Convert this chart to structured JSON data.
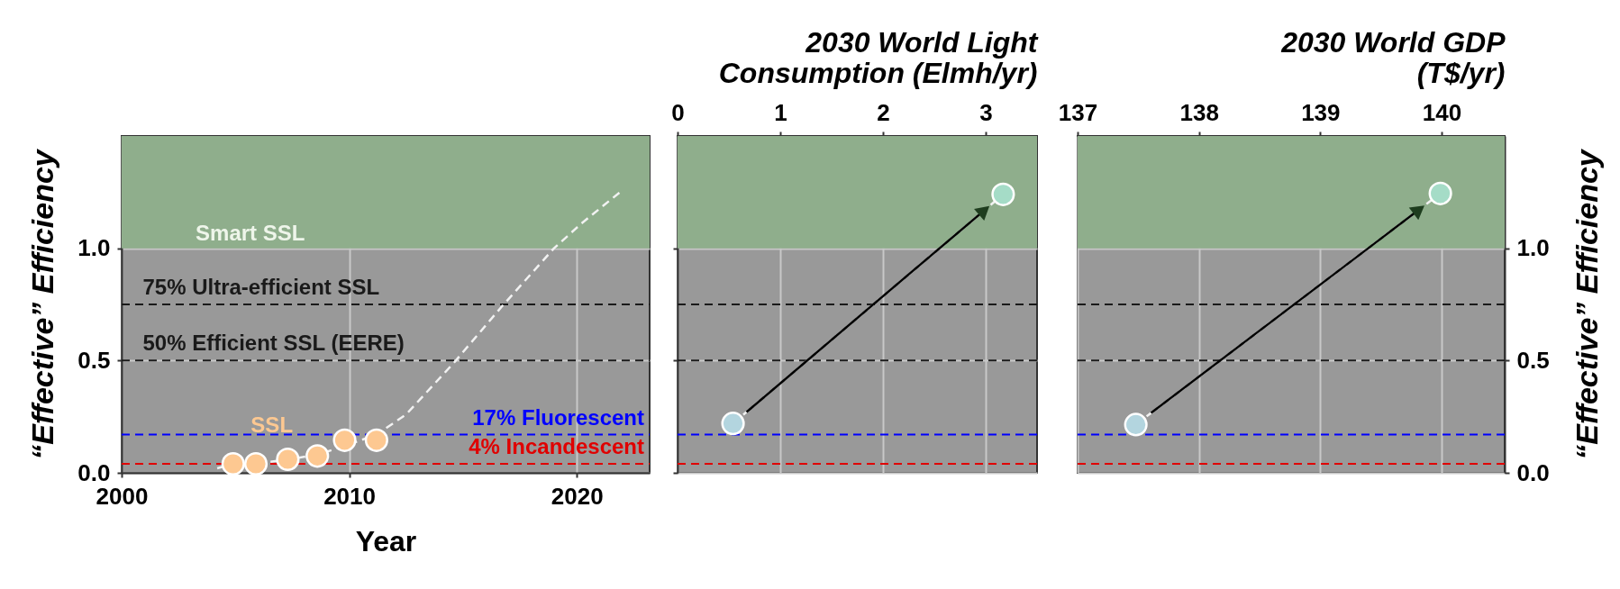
{
  "chart_data": [
    {
      "type": "scatter",
      "xlabel": "Year",
      "ylabel": "“Effective” Efficiency",
      "xlim": [
        2000,
        2023.2
      ],
      "xticks": [
        2000,
        2010,
        2020
      ],
      "ylim": [
        0,
        1.5
      ],
      "yticks": [
        {
          "value": 0,
          "label": "0.0"
        },
        {
          "value": 0.5,
          "label": "0.5"
        },
        {
          "value": 1.0,
          "label": "1.0"
        }
      ],
      "grid": true,
      "bands": [
        {
          "axis": "y",
          "from": 1.0,
          "to": 1.5,
          "label": "Smart SSL",
          "color": "#8fae8c"
        }
      ],
      "ref_lines": [
        {
          "axis": "y",
          "value": 0.75,
          "label": "75% Ultra-efficient SSL",
          "color": "#1a1a1a",
          "line_style": "dashed"
        },
        {
          "axis": "y",
          "value": 0.5,
          "label": "50% Efficient SSL (EERE)",
          "color": "#1a1a1a",
          "line_style": "dashed"
        },
        {
          "axis": "y",
          "value": 0.17,
          "label": "17% Fluorescent",
          "color": "#0000ff",
          "line_style": "dashed"
        },
        {
          "axis": "y",
          "value": 0.04,
          "label": "4% Incandescent",
          "color": "#e00000",
          "line_style": "dashed"
        }
      ],
      "series": [
        {
          "type": "line",
          "line_style": "dashed",
          "color": "#f2f2f2",
          "x": [
            2004.2,
            2004.9,
            2005.9,
            2007.3,
            2008.6,
            2009.8,
            2011.2,
            2012.5,
            2014.6,
            2016.7,
            2019.0,
            2020.2,
            2021.9
          ],
          "values": [
            0.02,
            0.04,
            0.04,
            0.06,
            0.08,
            0.12,
            0.17,
            0.26,
            0.49,
            0.74,
            1.0,
            1.11,
            1.25
          ]
        },
        {
          "name": "SSL",
          "color": "#fdc891",
          "marker": "circle",
          "x": [
            2004.9,
            2005.9,
            2007.3,
            2008.6,
            2009.8,
            2011.2
          ],
          "values": [
            0.04,
            0.04,
            0.06,
            0.075,
            0.145,
            0.145
          ]
        }
      ]
    },
    {
      "type": "scatter",
      "xlabel": "2030 World Light Consumption (Elmh/yr)",
      "xlim": [
        0,
        3.5
      ],
      "xticks": [
        0,
        1,
        2,
        3
      ],
      "ylim": [
        0,
        1.5
      ],
      "yticks": [
        {
          "value": 0,
          "label": null
        },
        {
          "value": 0.5,
          "label": null
        },
        {
          "value": 1.0,
          "label": null
        }
      ],
      "grid": true,
      "tick_labels": "x",
      "bands": [
        {
          "axis": "y",
          "from": 1.0,
          "to": 1.5,
          "color": "#8fae8c"
        }
      ],
      "ref_lines": [
        {
          "axis": "y",
          "value": 0.75,
          "color": "#1a1a1a",
          "line_style": "dashed"
        },
        {
          "axis": "y",
          "value": 0.5,
          "color": "#1a1a1a",
          "line_style": "dashed"
        },
        {
          "axis": "y",
          "value": 0.17,
          "color": "#0000ff",
          "line_style": "dashed"
        },
        {
          "axis": "y",
          "value": 0.04,
          "color": "#e00000",
          "line_style": "dashed"
        }
      ],
      "series": [
        {
          "type": "line",
          "line_style": "dashed",
          "color": "#f2f2f2",
          "x": [
            0.54,
            3.17
          ],
          "values": [
            0.22,
            1.24
          ]
        },
        {
          "colors": [
            "#b3d5df",
            "#a5dcc7"
          ],
          "marker": "circle",
          "x": [
            0.54,
            3.17
          ],
          "values": [
            0.22,
            1.24
          ]
        }
      ]
    },
    {
      "type": "scatter",
      "xlabel": "2030 World GDP (T$/yr)",
      "xlim": [
        137,
        140.52
      ],
      "xticks": [
        137,
        138,
        139,
        140
      ],
      "ylabel": "“Effective” Efficiency",
      "ylim": [
        0,
        1.5
      ],
      "yticks": [
        {
          "value": 0,
          "label": "0.0"
        },
        {
          "value": 0.5,
          "label": "0.5"
        },
        {
          "value": 1.0,
          "label": "1.0"
        }
      ],
      "grid": true,
      "bands": [
        {
          "axis": "y",
          "from": 1.0,
          "to": 1.5,
          "color": "#8fae8c"
        }
      ],
      "ref_lines": [
        {
          "axis": "y",
          "value": 0.75,
          "color": "#1a1a1a",
          "line_style": "dashed"
        },
        {
          "axis": "y",
          "value": 0.5,
          "color": "#1a1a1a",
          "line_style": "dashed"
        },
        {
          "axis": "y",
          "value": 0.17,
          "color": "#0000ff",
          "line_style": "dashed"
        },
        {
          "axis": "y",
          "value": 0.04,
          "color": "#e00000",
          "line_style": "dashed"
        }
      ],
      "series": [
        {
          "type": "line",
          "line_style": "dashed",
          "color": "#f2f2f2",
          "x": [
            137.48,
            139.99
          ],
          "values": [
            0.215,
            1.244
          ]
        },
        {
          "colors": [
            "#b3d5df",
            "#a5dcc7"
          ],
          "marker": "circle",
          "x": [
            137.48,
            139.99
          ],
          "values": [
            0.215,
            1.244
          ]
        }
      ]
    }
  ]
}
